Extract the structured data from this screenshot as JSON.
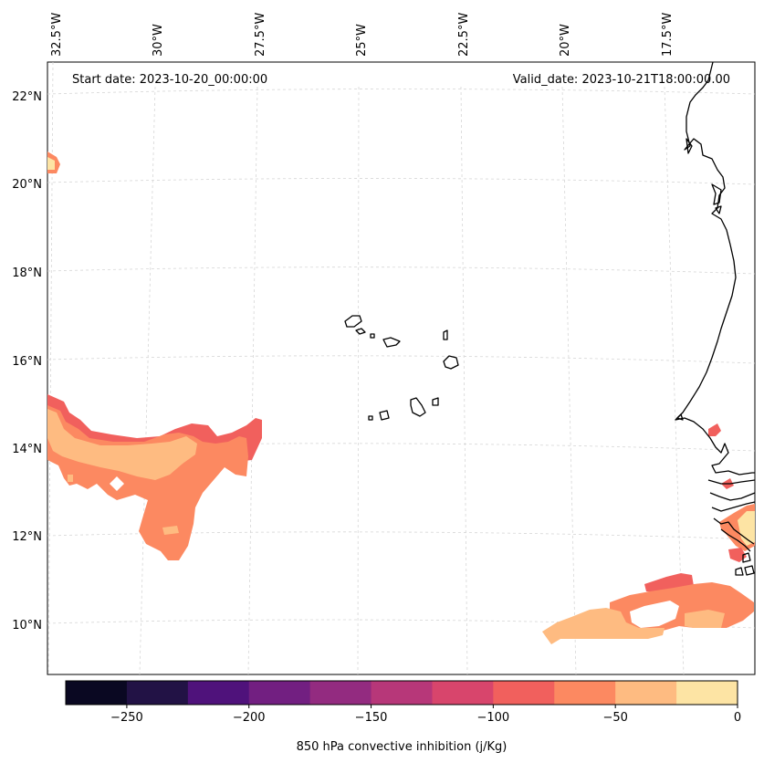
{
  "annotations": {
    "start_date": "Start date: 2023-10-20_00:00:00",
    "valid_date": "Valid_date: 2023-10-21T18:00:00.00"
  },
  "axes": {
    "longitude_labels": [
      "32.5°W",
      "30°W",
      "27.5°W",
      "25°W",
      "22.5°W",
      "20°W",
      "17.5°W"
    ],
    "latitude_labels": [
      "22°N",
      "20°N",
      "18°N",
      "16°N",
      "14°N",
      "12°N",
      "10°N"
    ]
  },
  "colorbar": {
    "label": "850 hPa convective inhibition (j/Kg)",
    "tick_labels": [
      "−250",
      "−200",
      "−150",
      "−100",
      "−50",
      "0"
    ],
    "levels": [
      -275,
      -250,
      -225,
      -200,
      -175,
      -150,
      -125,
      -100,
      -75,
      -50,
      -25,
      0
    ],
    "colors": [
      "#0a0822",
      "#221245",
      "#4f127b",
      "#721f81",
      "#932b80",
      "#b73779",
      "#d8456c",
      "#f1605d",
      "#fc8961",
      "#febb81",
      "#fde4a4"
    ]
  },
  "colors": {
    "coast": "#000000",
    "grid": "#cccccc"
  }
}
